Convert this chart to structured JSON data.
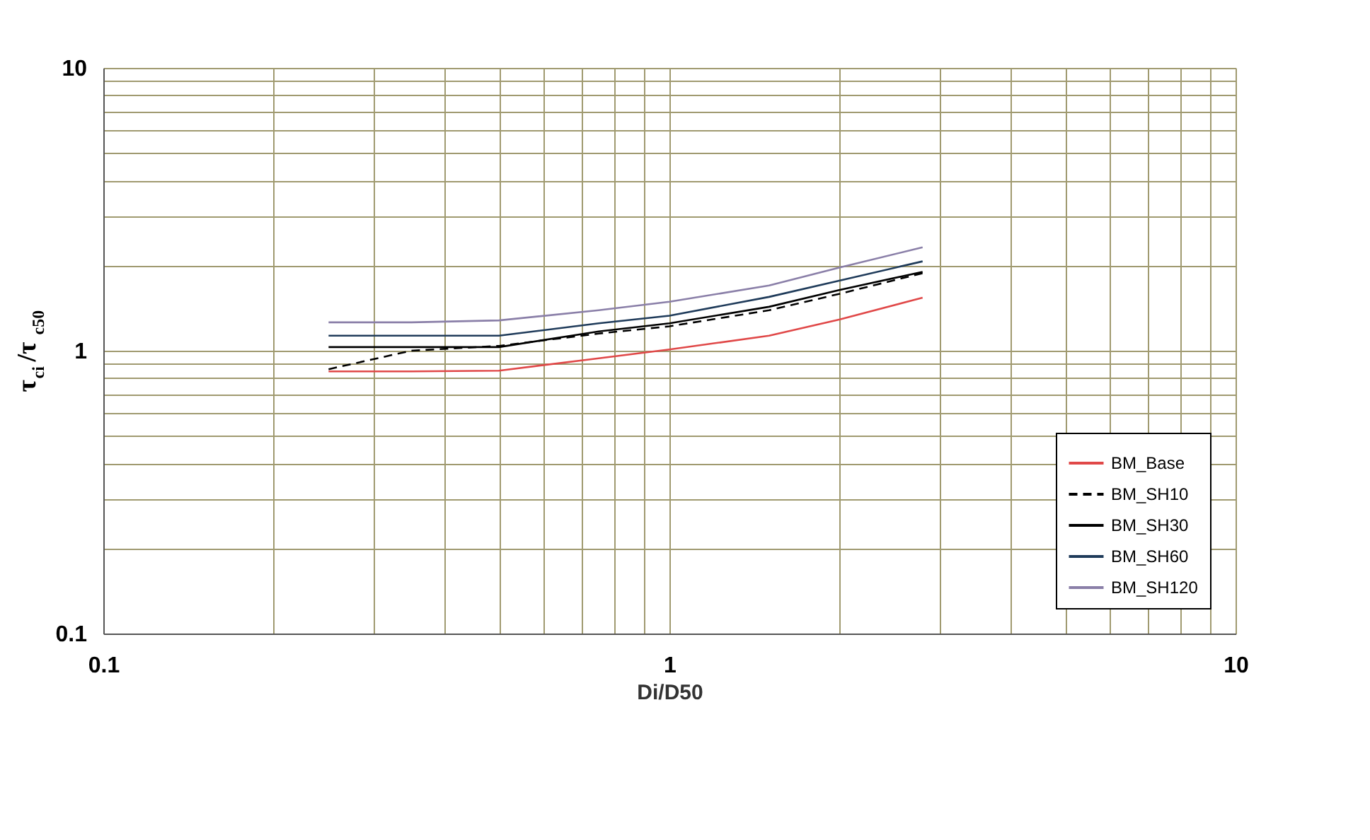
{
  "chart_data": {
    "type": "line",
    "xlabel": "Di/D50",
    "ylabel": "τ$_{ci}$/τ$_{c50}$",
    "log": "xy",
    "xlim": [
      0.1,
      10
    ],
    "ylim": [
      0.1,
      10
    ],
    "xticks": [
      0.1,
      {
        "value": 0.2,
        "label": null
      },
      {
        "value": 0.3,
        "label": null
      },
      {
        "value": 0.4,
        "label": null
      },
      {
        "value": 0.5,
        "label": null
      },
      {
        "value": 0.6,
        "label": null
      },
      {
        "value": 0.7,
        "label": null
      },
      {
        "value": 0.8,
        "label": null
      },
      {
        "value": 0.9,
        "label": null
      },
      1,
      {
        "value": 2,
        "label": null
      },
      {
        "value": 3,
        "label": null
      },
      {
        "value": 4,
        "label": null
      },
      {
        "value": 5,
        "label": null
      },
      {
        "value": 6,
        "label": null
      },
      {
        "value": 7,
        "label": null
      },
      {
        "value": 8,
        "label": null
      },
      {
        "value": 9,
        "label": null
      },
      10
    ],
    "yticks": [
      0.1,
      {
        "value": 0.2,
        "label": null
      },
      {
        "value": 0.3,
        "label": null
      },
      {
        "value": 0.4,
        "label": null
      },
      {
        "value": 0.5,
        "label": null
      },
      {
        "value": 0.6,
        "label": null
      },
      {
        "value": 0.7,
        "label": null
      },
      {
        "value": 0.8,
        "label": null
      },
      {
        "value": 0.9,
        "label": null
      },
      1,
      {
        "value": 2,
        "label": null
      },
      {
        "value": 3,
        "label": null
      },
      {
        "value": 4,
        "label": null
      },
      {
        "value": 5,
        "label": null
      },
      {
        "value": 6,
        "label": null
      },
      {
        "value": 7,
        "label": null
      },
      {
        "value": 8,
        "label": null
      },
      {
        "value": 9,
        "label": null
      },
      10
    ],
    "grid": true,
    "legend": "bottom right",
    "marker": "none",
    "x": [
      0.25,
      0.35,
      0.5,
      0.75,
      1,
      1.5,
      2,
      2.8
    ],
    "series": [
      {
        "name": "BM_Base",
        "color": "#e04848",
        "line_style": "solid",
        "values": [
          0.845,
          0.845,
          0.85,
          0.94,
          1.01,
          1.13,
          1.29,
          1.54
        ]
      },
      {
        "name": "BM_SH10",
        "color": "#000000",
        "line_style": "dashed",
        "values": [
          0.86,
          1.0,
          1.04,
          1.15,
          1.22,
          1.39,
          1.59,
          1.88
        ]
      },
      {
        "name": "BM_SH30",
        "color": "#000000",
        "line_style": "solid",
        "values": [
          1.03,
          1.03,
          1.03,
          1.17,
          1.25,
          1.43,
          1.64,
          1.9
        ]
      },
      {
        "name": "BM_SH60",
        "color": "#1f3b5a",
        "line_style": "solid",
        "values": [
          1.13,
          1.13,
          1.13,
          1.25,
          1.33,
          1.55,
          1.77,
          2.07
        ]
      },
      {
        "name": "BM_SH120",
        "color": "#8a7fa8",
        "line_style": "solid",
        "values": [
          1.26,
          1.26,
          1.28,
          1.39,
          1.49,
          1.7,
          1.97,
          2.32
        ]
      }
    ]
  }
}
